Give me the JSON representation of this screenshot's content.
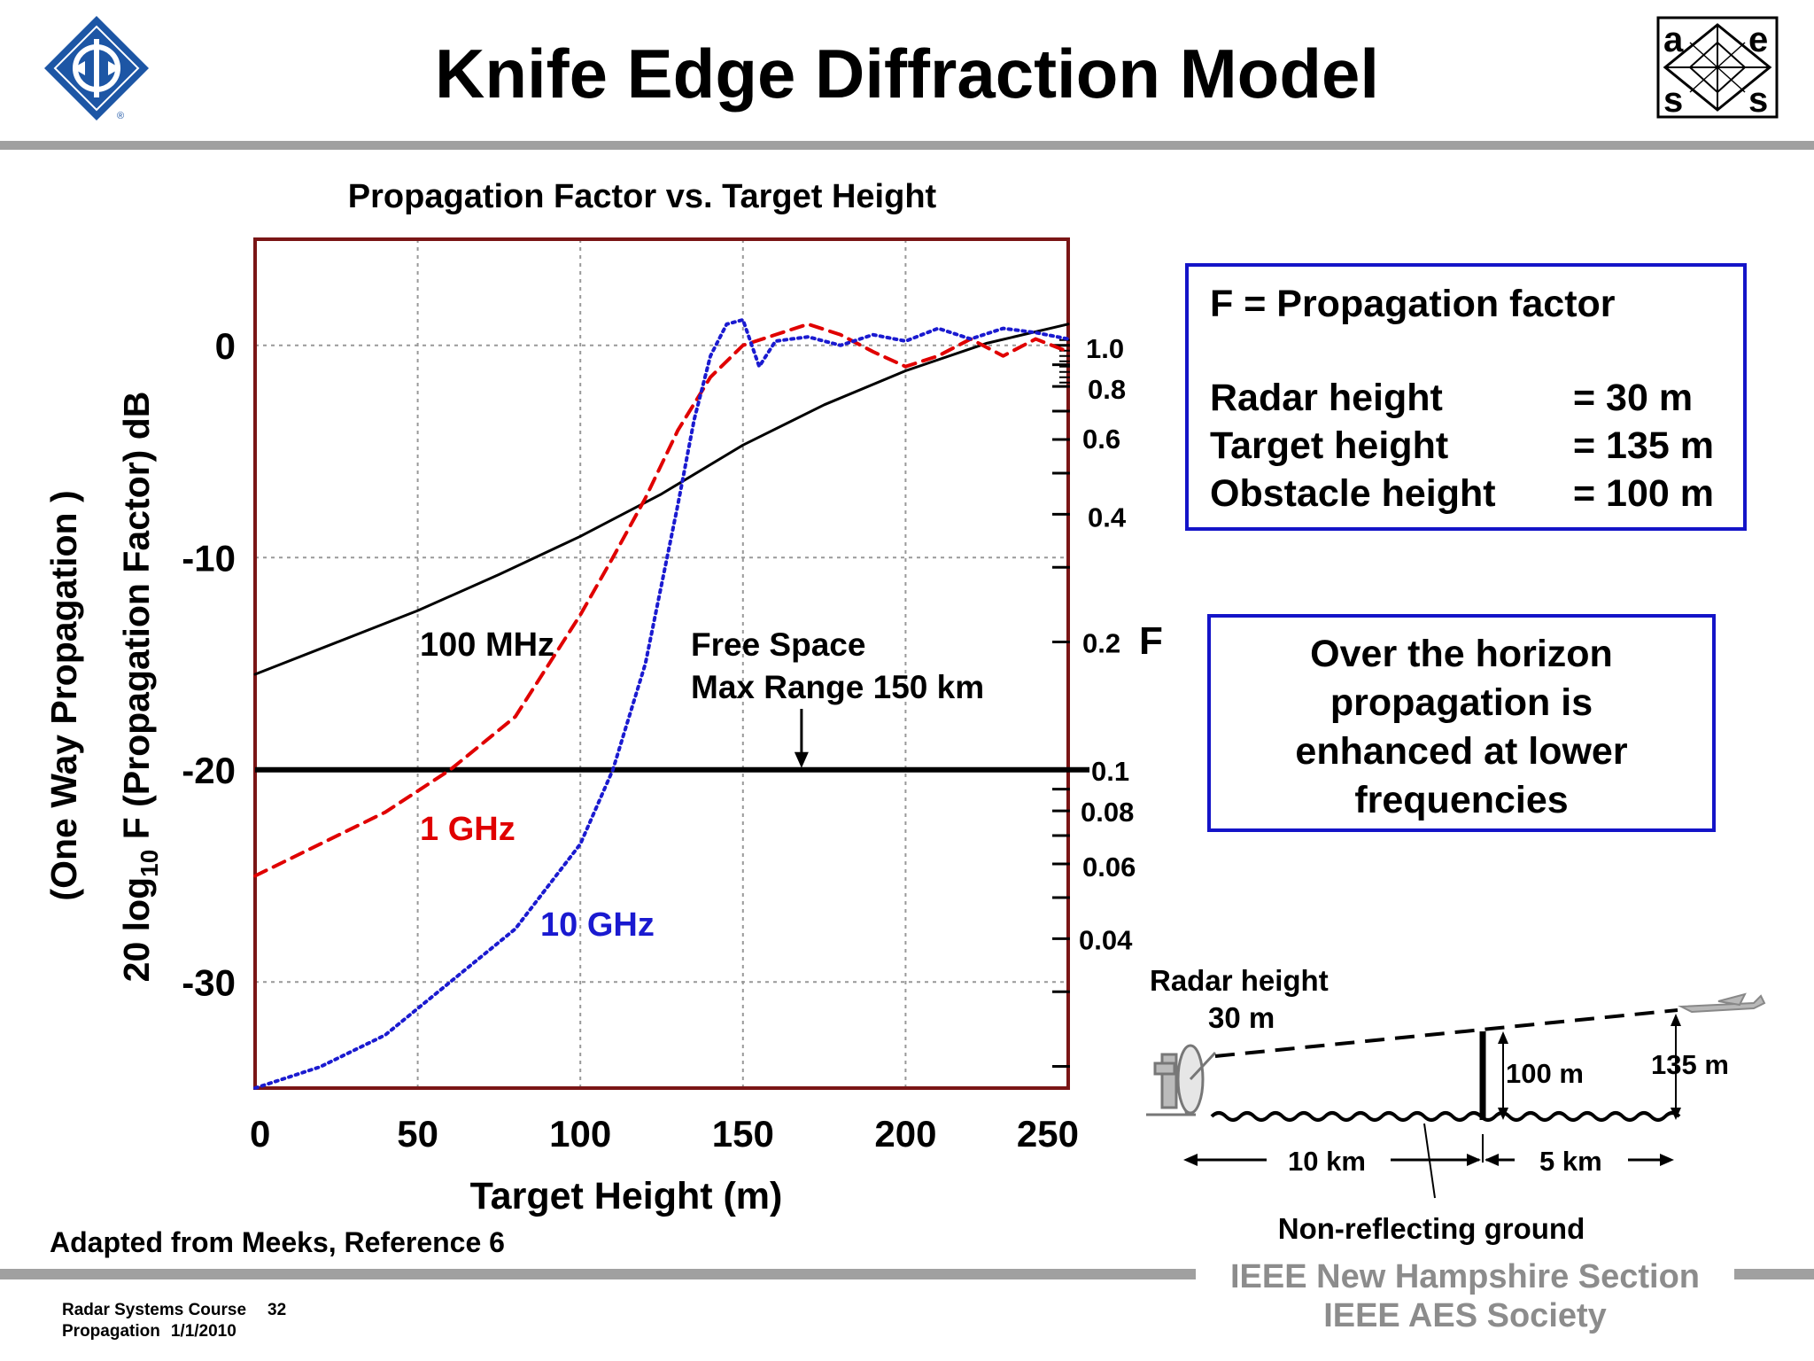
{
  "slide": {
    "title": "Knife Edge Diffraction Model",
    "credit": "Adapted from Meeks, Reference 6",
    "footer_course": "Radar Systems Course",
    "footer_page": "32",
    "footer_topic": "Propagation",
    "footer_date": "1/1/2010",
    "society_line1": "IEEE New Hampshire Section",
    "society_line2": "IEEE AES Society",
    "logo_left_icon": "ieee-diamond-logo-icon",
    "logo_right_icon": "aess-logo-icon",
    "logo_right_letters": [
      "a",
      "e",
      "s",
      "s"
    ]
  },
  "info_box": {
    "heading": "F = Propagation factor",
    "rows": [
      {
        "label": "Radar height",
        "value": "=  30 m"
      },
      {
        "label": "Target height",
        "value": "= 135 m"
      },
      {
        "label": "Obstacle height",
        "value": "= 100 m"
      }
    ]
  },
  "note_box": {
    "lines": [
      "Over the horizon",
      "propagation is",
      "enhanced at lower",
      "frequencies"
    ]
  },
  "diagram": {
    "radar_label_1": "Radar height",
    "radar_label_2": "30 m",
    "obstacle_label": "100 m",
    "target_label": "135 m",
    "dist_left": "10 km",
    "dist_right": "5 km",
    "ground_label": "Non-reflecting ground",
    "radar_icon": "radar-dish-icon",
    "aircraft_icon": "aircraft-icon"
  },
  "chart_data": {
    "type": "line",
    "title": "Propagation Factor vs. Target Height",
    "xlabel": "Target Height (m)",
    "ylabel_line1": "(One Way Propagation )",
    "ylabel_line2_pre": "20 log",
    "ylabel_line2_sub": "10",
    "ylabel_line2_post": " F (Propagation Factor) dB",
    "right_axis_label": "F",
    "xlim": [
      0,
      250
    ],
    "ylim": [
      -35,
      5
    ],
    "x_ticks": [
      0,
      50,
      100,
      150,
      200,
      250
    ],
    "x_tick_labels": [
      "0",
      "50",
      "100",
      "150",
      "200",
      "250"
    ],
    "y_ticks": [
      0,
      -10,
      -20,
      -30
    ],
    "y_tick_labels": [
      "0",
      "-10",
      "-20",
      "-30"
    ],
    "right_ticks": [
      1.0,
      0.8,
      0.6,
      0.4,
      0.2,
      0.1,
      0.08,
      0.06,
      0.04
    ],
    "right_tick_labels": [
      "1.0",
      "0.8",
      "0.6",
      "0.4",
      "0.2",
      "0.1",
      "0.08",
      "0.06",
      "0.04"
    ],
    "grid": true,
    "series": [
      {
        "name": "100 MHz",
        "color": "#000000",
        "style": "solid",
        "x": [
          0,
          25,
          50,
          75,
          100,
          125,
          150,
          175,
          200,
          225,
          250
        ],
        "y": [
          -15.5,
          -14,
          -12.5,
          -10.8,
          -9,
          -7,
          -4.7,
          -2.8,
          -1.2,
          0.1,
          1.0
        ]
      },
      {
        "name": "1 GHz",
        "color": "#e00000",
        "style": "dashed",
        "x": [
          0,
          20,
          40,
          60,
          80,
          100,
          110,
          120,
          130,
          140,
          150,
          160,
          170,
          180,
          190,
          200,
          210,
          220,
          230,
          240,
          250
        ],
        "y": [
          -25,
          -23.5,
          -22,
          -20,
          -17.5,
          -12.7,
          -10,
          -7.2,
          -4,
          -1.5,
          0,
          0.5,
          1,
          0.5,
          -0.3,
          -1,
          -0.5,
          0.3,
          -0.5,
          0.3,
          -0.3
        ]
      },
      {
        "name": "10 GHz",
        "color": "#1a1ad0",
        "style": "dotted",
        "x": [
          0,
          20,
          40,
          60,
          80,
          100,
          110,
          120,
          130,
          135,
          140,
          145,
          150,
          155,
          160,
          170,
          180,
          190,
          200,
          210,
          220,
          230,
          240,
          250
        ],
        "y": [
          -35,
          -34,
          -32.5,
          -30,
          -27.5,
          -23.5,
          -20,
          -15,
          -7.5,
          -3.5,
          -0.5,
          1,
          1.2,
          -1,
          0.2,
          0.4,
          0,
          0.5,
          0.2,
          0.8,
          0.3,
          0.8,
          0.6,
          0.3
        ]
      }
    ],
    "reference_line": {
      "y": -20,
      "label_line1": "Free Space",
      "label_line2": "Max Range 150 km",
      "arrow_x": 168
    }
  }
}
